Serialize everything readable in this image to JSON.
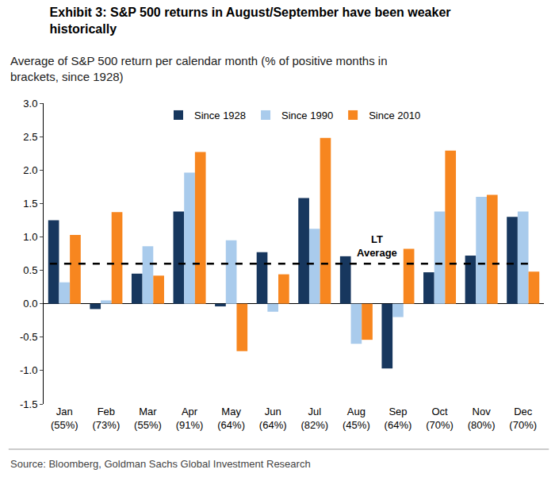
{
  "chart_data": {
    "type": "bar",
    "title": "Exhibit 3: S&P 500 returns in August/September have been weaker\nhistorically",
    "subtitle": "Average of S&P 500 return per calendar month (% of positive months in\nbrackets, since 1928)",
    "source": "Source: Bloomberg, Goldman Sachs Global Investment Research",
    "categories": [
      "Jan\n(55%)",
      "Feb\n(73%)",
      "Mar\n(55%)",
      "Apr\n(91%)",
      "May\n(64%)",
      "Jun\n(64%)",
      "Jul\n(82%)",
      "Aug\n(45%)",
      "Sep\n(64%)",
      "Oct\n(70%)",
      "Nov\n(80%)",
      "Dec\n(70%)"
    ],
    "series": [
      {
        "name": "Since 1928",
        "color": "#17375e",
        "values": [
          1.25,
          -0.08,
          0.45,
          1.38,
          -0.04,
          0.77,
          1.58,
          0.71,
          -0.97,
          0.47,
          0.72,
          1.3
        ]
      },
      {
        "name": "Since 1990",
        "color": "#a9cbec",
        "values": [
          0.32,
          0.05,
          0.86,
          1.96,
          0.95,
          -0.12,
          1.12,
          -0.6,
          -0.2,
          1.38,
          1.6,
          1.38
        ]
      },
      {
        "name": "Since 2010",
        "color": "#f7861f",
        "values": [
          1.03,
          1.37,
          0.42,
          2.27,
          -0.71,
          0.44,
          2.48,
          -0.54,
          0.82,
          2.29,
          1.63,
          0.48
        ]
      }
    ],
    "ylim": [
      -1.5,
      3.0
    ],
    "yticks": [
      -1.5,
      {
        "value": -1.0,
        "label": "-1.0"
      },
      -0.5,
      {
        "value": 0.0,
        "label": "0.0"
      },
      0.5,
      {
        "value": 1.0,
        "label": "1.0"
      },
      1.5,
      {
        "value": 2.0,
        "label": "2.0"
      },
      2.5,
      {
        "value": 3.0,
        "label": "3.0"
      }
    ],
    "grid": false,
    "legend": "top",
    "reference_line": {
      "value": 0.6,
      "label": "LT\nAverage"
    }
  }
}
